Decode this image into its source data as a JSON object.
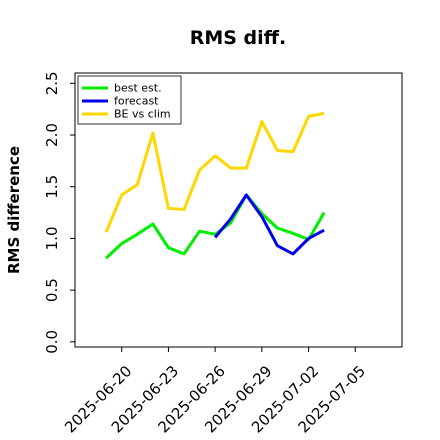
{
  "chart_data": {
    "type": "line",
    "title": "RMS diff.",
    "xlabel": "",
    "ylabel": "RMS difference",
    "ylim": [
      -0.05,
      2.6
    ],
    "xlim": [
      "2025-06-17",
      "2025-07-08"
    ],
    "yticks": [
      "0.0",
      "0.5",
      "1.0",
      "1.5",
      "2.0",
      "2.5"
    ],
    "ytick_values": [
      0.0,
      0.5,
      1.0,
      1.5,
      2.0,
      2.5
    ],
    "xticks": [
      "2025-06-20",
      "2025-06-23",
      "2025-06-26",
      "2025-06-29",
      "2025-07-02",
      "2025-07-05"
    ],
    "highlighted_xtick": "2025-06-26",
    "highlight_color": "#228B22",
    "grid": false,
    "legend_position": "upper left",
    "series": [
      {
        "name": "best est.",
        "color": "#00ee00",
        "x": [
          "2025-06-19",
          "2025-06-20",
          "2025-06-21",
          "2025-06-22",
          "2025-06-23",
          "2025-06-24",
          "2025-06-25",
          "2025-06-26",
          "2025-06-27",
          "2025-06-28",
          "2025-06-29",
          "2025-06-30",
          "2025-07-01",
          "2025-07-02",
          "2025-07-03"
        ],
        "y": [
          0.81,
          0.95,
          1.04,
          1.14,
          0.91,
          0.85,
          1.07,
          1.04,
          1.15,
          1.42,
          1.24,
          1.1,
          1.05,
          0.99,
          1.25
        ]
      },
      {
        "name": "forecast",
        "color": "#0000ee",
        "x": [
          "2025-06-26",
          "2025-06-27",
          "2025-06-28",
          "2025-06-29",
          "2025-06-30",
          "2025-07-01",
          "2025-07-02",
          "2025-07-03"
        ],
        "y": [
          1.01,
          1.19,
          1.42,
          1.21,
          0.93,
          0.85,
          1.0,
          1.08
        ]
      },
      {
        "name": "BE vs clim",
        "color": "#ffd700",
        "x": [
          "2025-06-19",
          "2025-06-20",
          "2025-06-21",
          "2025-06-22",
          "2025-06-23",
          "2025-06-24",
          "2025-06-25",
          "2025-06-26",
          "2025-06-27",
          "2025-06-28",
          "2025-06-29",
          "2025-06-30",
          "2025-07-01",
          "2025-07-02",
          "2025-07-03"
        ],
        "y": [
          1.06,
          1.42,
          1.52,
          2.02,
          1.29,
          1.28,
          1.66,
          1.8,
          1.68,
          1.68,
          2.13,
          1.85,
          1.84,
          2.18,
          2.21
        ]
      }
    ]
  }
}
